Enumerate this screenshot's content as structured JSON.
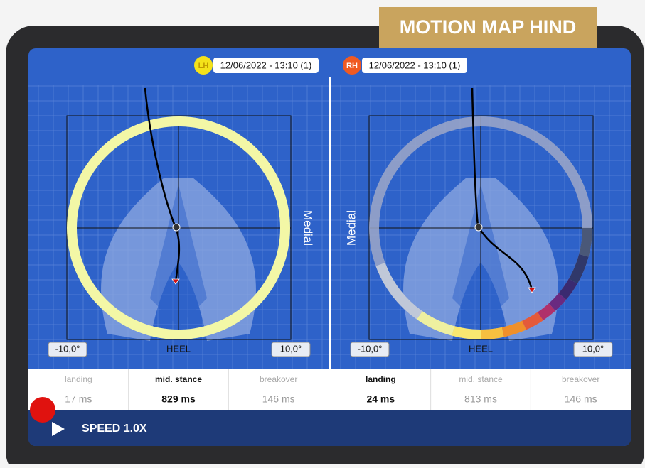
{
  "header": {
    "title": "MOTION MAP HIND"
  },
  "panels": [
    {
      "badge": "LH",
      "date": "12/06/2022 - 13:10 (1)",
      "side_label": "Medial",
      "bottom_label": "HEEL",
      "left_angle": "-10,0°",
      "right_angle": "10,0°",
      "active_phase": 1,
      "phases": [
        {
          "name": "landing",
          "time": "17 ms"
        },
        {
          "name": "mid. stance",
          "time": "829 ms"
        },
        {
          "name": "breakover",
          "time": "146 ms"
        }
      ]
    },
    {
      "badge": "RH",
      "date": "12/06/2022 - 13:10 (1)",
      "side_label": "Medial",
      "bottom_label": "HEEL",
      "left_angle": "-10,0°",
      "right_angle": "10,0°",
      "active_phase": 0,
      "phases": [
        {
          "name": "landing",
          "time": "24 ms"
        },
        {
          "name": "mid. stance",
          "time": "813 ms"
        },
        {
          "name": "breakover",
          "time": "146 ms"
        }
      ]
    }
  ],
  "player": {
    "speed": "SPEED 1.0X"
  }
}
